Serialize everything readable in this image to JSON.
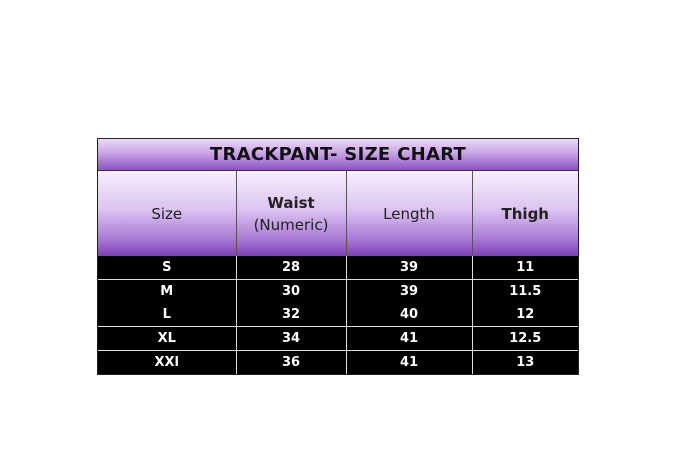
{
  "title": "TRACKPANT- SIZE CHART",
  "columns": [
    "Size",
    "Waist\n(Numeric)",
    "Length",
    "Thigh"
  ],
  "columns_display": {
    "size": "Size",
    "waist_line1": "Waist",
    "waist_line2": "(Numeric)",
    "length": "Length",
    "thigh": "Thigh"
  },
  "rows": [
    [
      "S",
      "28",
      "39",
      "11"
    ],
    [
      "M",
      "30",
      "39",
      "11.5"
    ],
    [
      "L",
      "32",
      "40",
      "12"
    ],
    [
      "XL",
      "34",
      "41",
      "12.5"
    ],
    [
      "XXl",
      "36",
      "41",
      "13"
    ]
  ],
  "colors": {
    "header_purple": "#7d3fb8",
    "body_bg": "#000000"
  }
}
